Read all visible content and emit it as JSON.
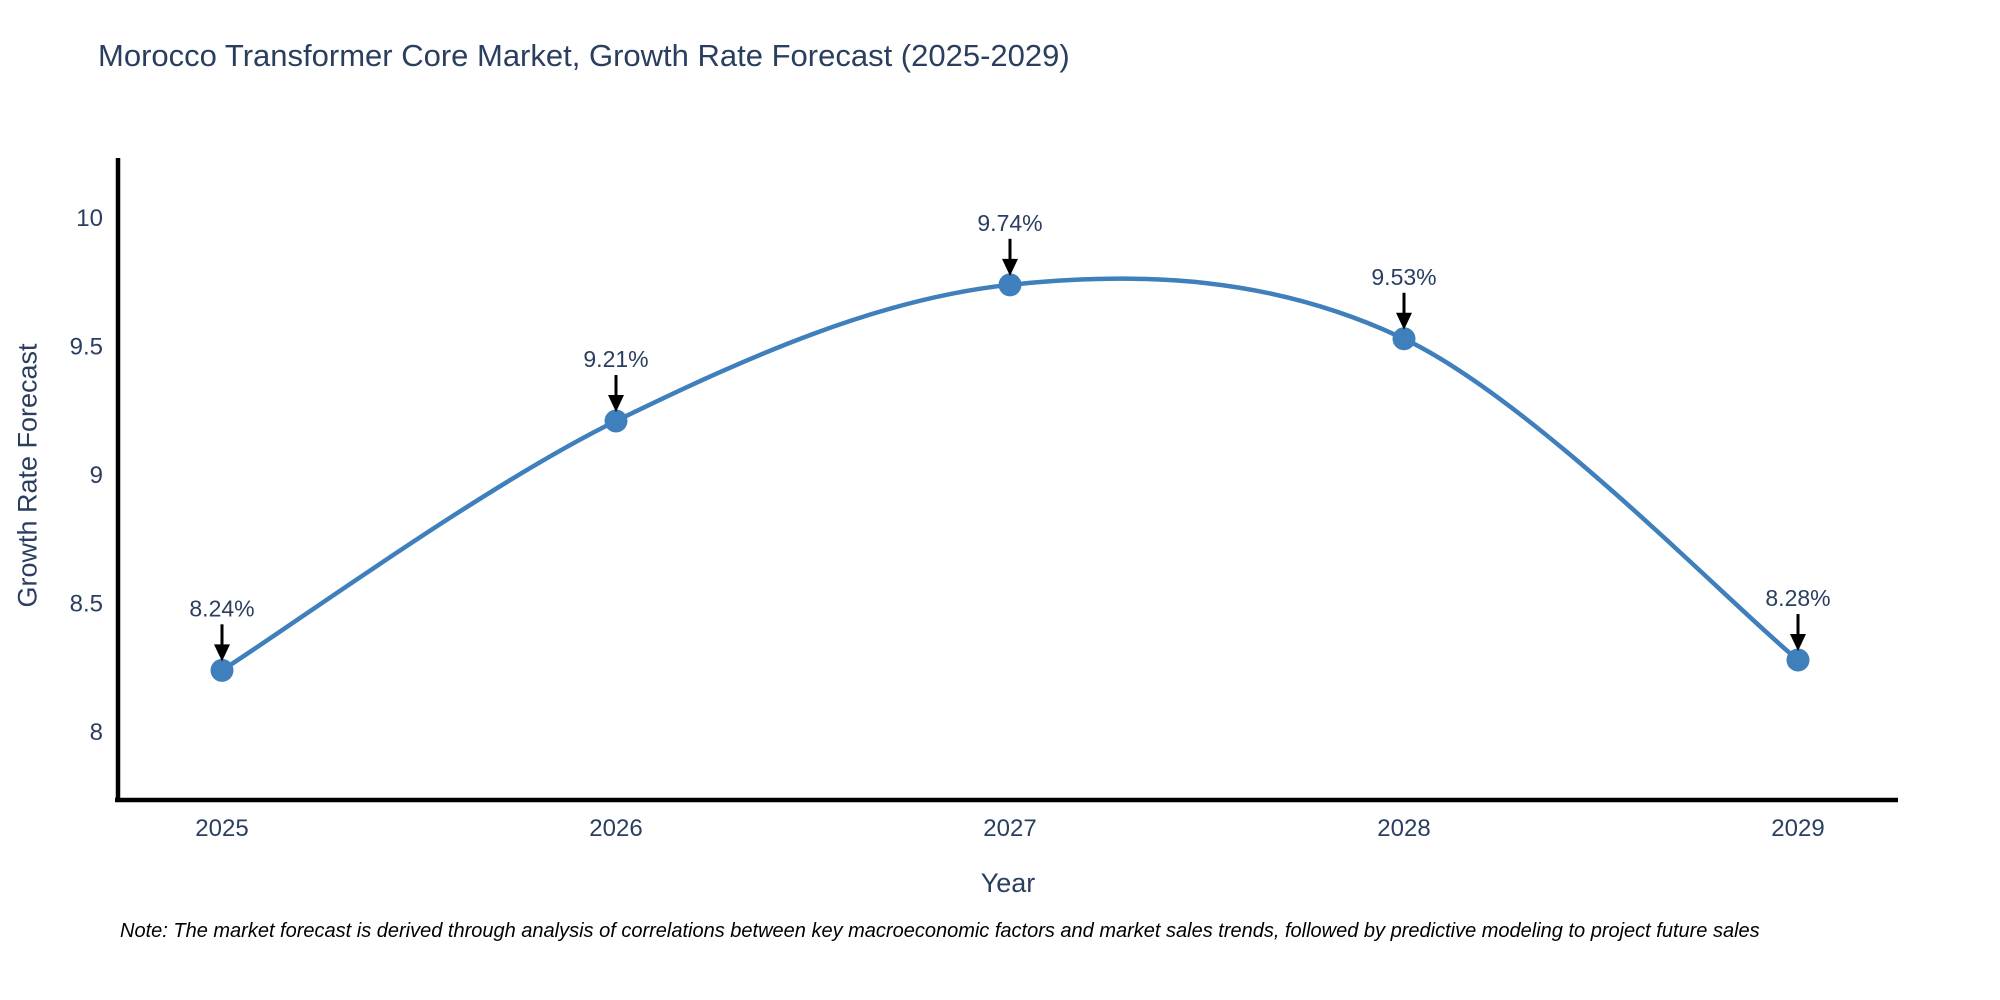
{
  "title": "Morocco Transformer Core Market, Growth Rate Forecast (2025-2029)",
  "note": "Note: The market forecast is derived through analysis of correlations between key macroeconomic factors and market sales trends, followed by predictive modeling to project future sales",
  "chart_data": {
    "type": "line",
    "title": "Morocco Transformer Core Market, Growth Rate Forecast (2025-2029)",
    "xlabel": "Year",
    "ylabel": "Growth Rate Forecast",
    "x": [
      2025,
      2026,
      2027,
      2028,
      2029
    ],
    "values": [
      8.24,
      9.21,
      9.74,
      9.53,
      8.28
    ],
    "point_labels": [
      "8.24%",
      "9.21%",
      "9.74%",
      "9.53%",
      "8.28%"
    ],
    "xtick_labels": [
      "2025",
      "2026",
      "2027",
      "2028",
      "2029"
    ],
    "yticks": [
      8,
      8.5,
      9,
      9.5,
      10
    ],
    "ytick_labels": [
      "8",
      "8.5",
      "9",
      "9.5",
      "10"
    ],
    "ylim": [
      7.74,
      10.22
    ],
    "line_shape": "spline",
    "grid": false,
    "legend_position": "none",
    "colors": {
      "line": "#3f7fbc",
      "marker": "#3f7fbc",
      "axis": "#000000",
      "tick_text": "#2a3f5f",
      "annotation_text": "#2a3f5f",
      "annotation_arrow": "#000000",
      "title_text": "#2a3f5f",
      "background": "#ffffff"
    }
  }
}
